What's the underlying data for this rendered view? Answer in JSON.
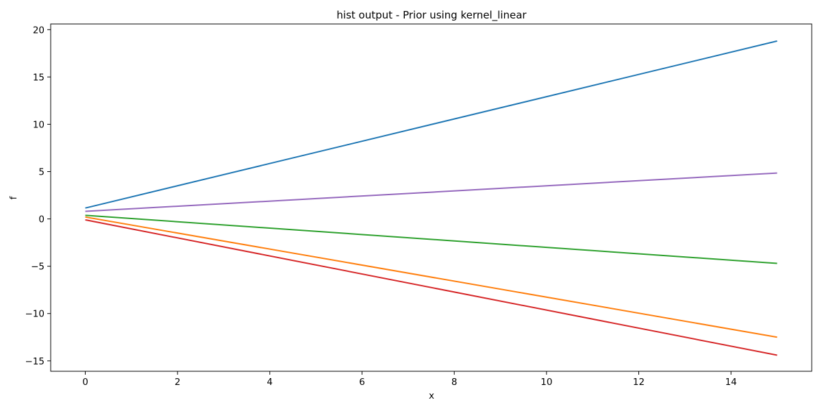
{
  "chart_data": {
    "type": "line",
    "title": "hist output - Prior using kernel_linear",
    "xlabel": "x",
    "ylabel": "f",
    "xlim": [
      -0.75,
      15.75
    ],
    "ylim": [
      -16.1,
      20.6
    ],
    "xticks": [
      0,
      2,
      4,
      6,
      8,
      10,
      12,
      14
    ],
    "xtick_labels": [
      "0",
      "2",
      "4",
      "6",
      "8",
      "10",
      "12",
      "14"
    ],
    "yticks": [
      -15,
      -10,
      -5,
      0,
      5,
      10,
      15,
      20
    ],
    "ytick_labels": [
      "−15",
      "−10",
      "−5",
      "0",
      "5",
      "10",
      "15",
      "20"
    ],
    "grid": false,
    "legend": "none",
    "x": [
      0,
      15
    ],
    "series": [
      {
        "color": "#1f77b4",
        "values": [
          1.15,
          18.8
        ]
      },
      {
        "color": "#ff7f0e",
        "values": [
          0.2,
          -12.5
        ]
      },
      {
        "color": "#2ca02c",
        "values": [
          0.38,
          -4.7
        ]
      },
      {
        "color": "#d62728",
        "values": [
          -0.1,
          -14.4
        ]
      },
      {
        "color": "#9467bd",
        "values": [
          0.8,
          4.85
        ]
      }
    ]
  }
}
